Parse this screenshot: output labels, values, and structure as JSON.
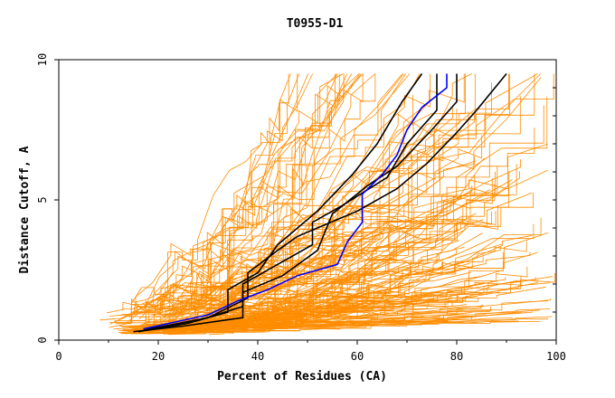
{
  "chart_data": {
    "type": "line",
    "title": "T0955-D1",
    "xlabel": "Percent of Residues (CA)",
    "ylabel": "Distance Cutoff, A",
    "xlim": [
      0,
      100
    ],
    "ylim": [
      0,
      10
    ],
    "x_ticks": [
      "0",
      "20",
      "40",
      "60",
      "80",
      "100"
    ],
    "y_ticks": [
      "0",
      "5",
      "10"
    ],
    "grid": false,
    "colors": {
      "background_models": "#ff8c00",
      "highlight_black": "#000000",
      "highlight_blue": "#0000ff"
    },
    "background_curve_count": 180,
    "series": [
      {
        "color": "#000000",
        "points": [
          [
            15,
            0.3
          ],
          [
            25,
            0.5
          ],
          [
            37,
            0.8
          ],
          [
            37,
            1.7
          ],
          [
            45,
            2.3
          ],
          [
            52,
            3.2
          ],
          [
            55,
            4.5
          ],
          [
            62,
            5.5
          ],
          [
            68,
            6.2
          ],
          [
            75,
            7.5
          ],
          [
            80,
            8.5
          ],
          [
            80,
            9.5
          ]
        ]
      },
      {
        "color": "#000000",
        "points": [
          [
            18,
            0.4
          ],
          [
            28,
            0.7
          ],
          [
            37,
            1.2
          ],
          [
            37,
            2.0
          ],
          [
            43,
            2.6
          ],
          [
            51,
            3.4
          ],
          [
            51,
            4.2
          ],
          [
            57,
            4.8
          ],
          [
            66,
            5.8
          ],
          [
            70,
            7.0
          ],
          [
            76,
            8.2
          ],
          [
            76,
            9.5
          ]
        ]
      },
      {
        "color": "#000000",
        "points": [
          [
            16,
            0.3
          ],
          [
            26,
            0.6
          ],
          [
            34,
            1.0
          ],
          [
            34,
            1.8
          ],
          [
            40,
            2.4
          ],
          [
            44,
            3.4
          ],
          [
            52,
            4.6
          ],
          [
            59,
            5.9
          ],
          [
            64,
            7.0
          ],
          [
            69,
            8.5
          ],
          [
            73,
            9.5
          ]
        ]
      },
      {
        "color": "#000000",
        "points": [
          [
            17,
            0.35
          ],
          [
            30,
            0.8
          ],
          [
            38,
            1.5
          ],
          [
            38,
            2.4
          ],
          [
            44,
            3.2
          ],
          [
            48,
            3.7
          ],
          [
            60,
            4.6
          ],
          [
            68,
            5.4
          ],
          [
            74,
            6.3
          ],
          [
            80,
            7.4
          ],
          [
            84,
            8.2
          ],
          [
            90,
            9.5
          ]
        ]
      },
      {
        "color": "#0000ff",
        "points": [
          [
            17,
            0.4
          ],
          [
            30,
            0.9
          ],
          [
            36,
            1.4
          ],
          [
            42,
            1.8
          ],
          [
            48,
            2.3
          ],
          [
            56,
            2.7
          ],
          [
            58,
            3.5
          ],
          [
            61,
            4.2
          ],
          [
            61,
            5.2
          ],
          [
            65,
            5.9
          ],
          [
            68,
            6.6
          ],
          [
            70,
            7.5
          ],
          [
            73,
            8.3
          ],
          [
            78,
            9.0
          ],
          [
            78,
            9.5
          ]
        ]
      }
    ]
  }
}
